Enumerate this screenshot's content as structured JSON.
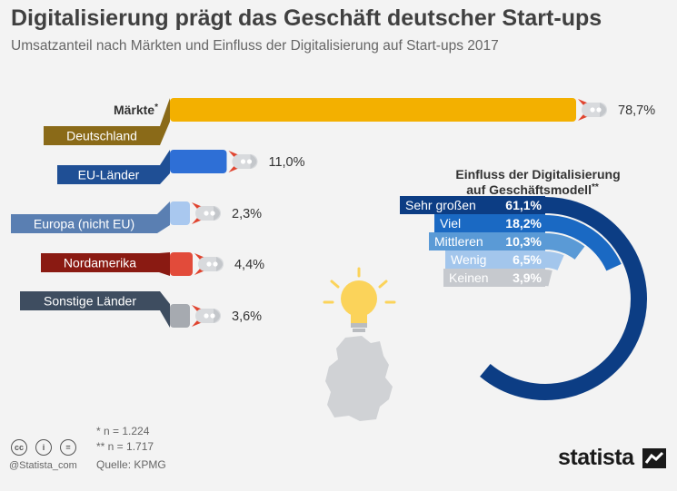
{
  "title": "Digitalisierung prägt das Geschäft deutscher Start-ups",
  "subtitle": "Umsatzanteil nach Märkten und Einfluss der Digitalisierung auf Start-ups 2017",
  "colors": {
    "deutschland": "#f3b000",
    "deutschland_dark": "#8a6a18",
    "eu": "#2e6fd6",
    "eu_dark": "#1f4f95",
    "europa": "#a9c8ef",
    "europa_dark": "#5a7fb2",
    "nordamerika": "#e24b3a",
    "nordamerika_dark": "#8a1a12",
    "sonstige": "#a6aab0",
    "sonstige_dark": "#3e4d60",
    "ring1": "#0c3d84",
    "ring2": "#1a69c3",
    "ring3": "#5a9ad6",
    "ring4": "#a3c6ec",
    "ring5": "#c6c9ce"
  },
  "chart_data": [
    {
      "type": "bar",
      "legend_title": "Märkte",
      "legend_title_mark": "*",
      "categories": [
        "Deutschland",
        "EU-Länder",
        "Europa (nicht EU)",
        "Nordamerika",
        "Sonstige Länder"
      ],
      "values": [
        78.7,
        11.0,
        2.3,
        4.4,
        3.6
      ],
      "value_labels": [
        "78,7%",
        "11,0%",
        "2,3%",
        "4,4%",
        "3,6%"
      ],
      "unit": "%"
    },
    {
      "type": "pie",
      "title": "Einfluss der Digitalisierung auf Geschäftsmodell",
      "title_line1": "Einfluss der Digitalisierung",
      "title_line2": "auf Geschäftsmodell",
      "title_mark": "**",
      "categories": [
        "Sehr großen",
        "Viel",
        "Mittleren",
        "Wenig",
        "Keinen"
      ],
      "values": [
        61.1,
        18.2,
        10.3,
        6.5,
        3.9
      ],
      "value_labels": [
        "61,1%",
        "18,2%",
        "10,3%",
        "6,5%",
        "3,9%"
      ],
      "unit": "%"
    }
  ],
  "notes": {
    "n1": "*   n = 1.224",
    "n2": "** n = 1.717",
    "source": "Quelle: KPMG"
  },
  "license": {
    "cc": "cc",
    "by": "i",
    "nd": "=",
    "handle": "@Statista_com"
  },
  "brand": "statista"
}
